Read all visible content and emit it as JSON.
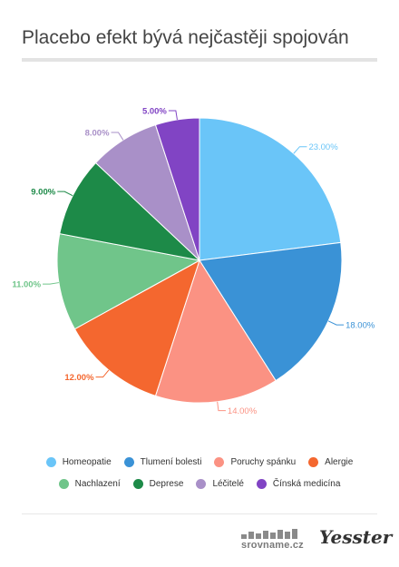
{
  "title": "Placebo efekt bývá nejčastěji spojován",
  "chart_data": {
    "type": "pie",
    "title": "Placebo efekt bývá nejčastěji spojován",
    "unit": "%",
    "categories": [
      "Homeopatie",
      "Tlumení bolesti",
      "Poruchy spánku",
      "Alergie",
      "Nachlazení",
      "Deprese",
      "Léčitelé",
      "Čínská medicína"
    ],
    "values": [
      23,
      18,
      14,
      12,
      11,
      9,
      8,
      5
    ],
    "value_labels": [
      "23.00%",
      "18.00%",
      "14.00%",
      "12.00%",
      "11.00%",
      "9.00%",
      "8.00%",
      "5.00%"
    ],
    "colors": [
      "#6ac5f8",
      "#3a92d6",
      "#fb9283",
      "#f4672f",
      "#70c58a",
      "#1d8a48",
      "#a990c8",
      "#8144c4"
    ],
    "legend_position": "bottom"
  },
  "footer": {
    "logo_srovname": "srovname.cz",
    "logo_yesster": "Yesster"
  }
}
